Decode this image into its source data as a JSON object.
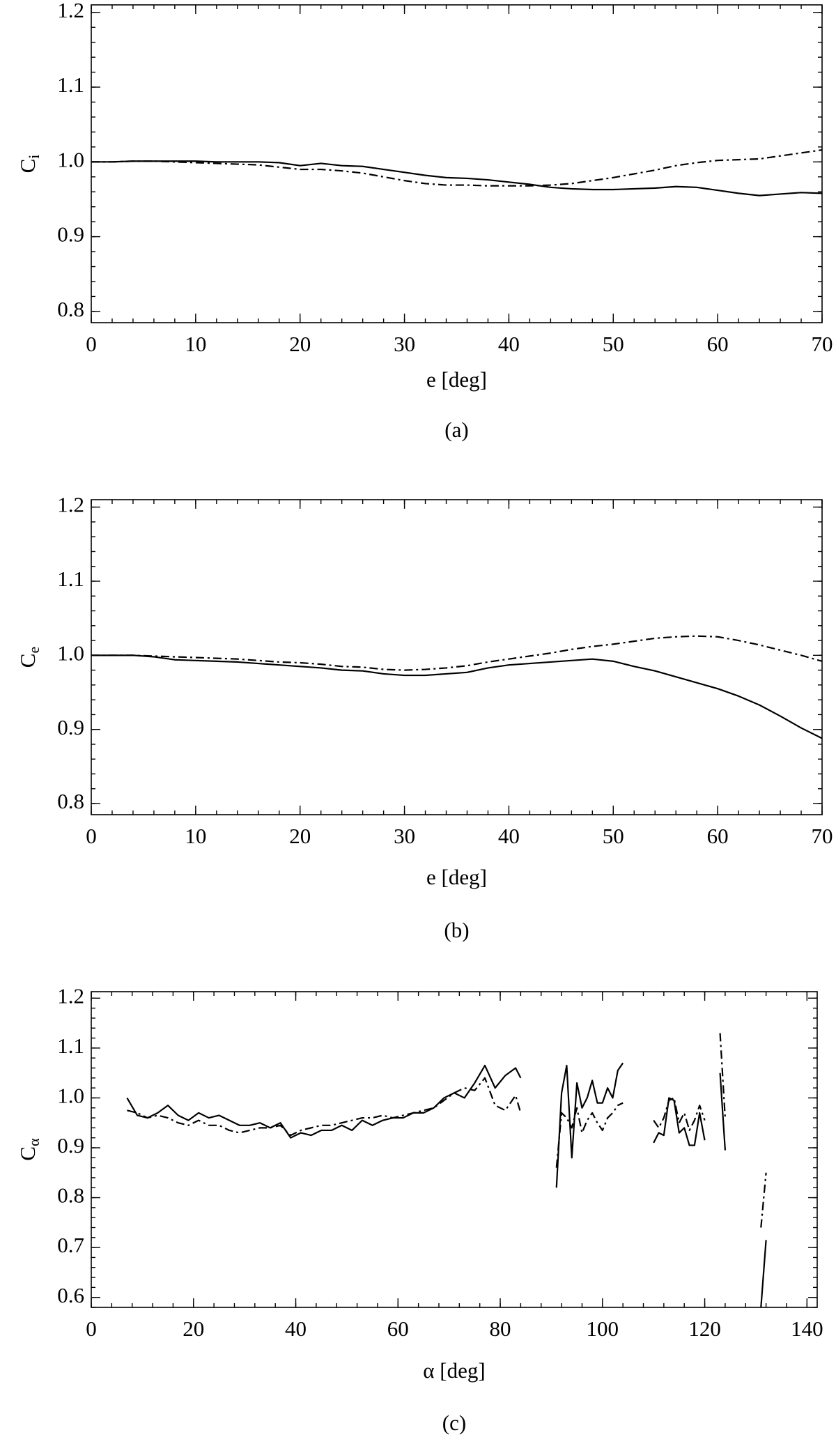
{
  "chart_data": [
    {
      "type": "line",
      "ylabel": "C",
      "ylabel_subscript": "i",
      "xlabel": "e [deg]",
      "caption": "(a)",
      "xlim": [
        0,
        70
      ],
      "xticks": [
        0,
        10,
        20,
        30,
        40,
        50,
        60,
        70
      ],
      "ylim": [
        0.785,
        1.21
      ],
      "yticks": [
        0.8,
        0.9,
        {
          "value": 1.0,
          "label": "1.0"
        },
        1.1,
        1.2
      ],
      "x": [
        0,
        2,
        4,
        6,
        8,
        10,
        12,
        14,
        16,
        18,
        20,
        22,
        24,
        26,
        28,
        30,
        32,
        34,
        36,
        38,
        40,
        42,
        44,
        46,
        48,
        50,
        52,
        54,
        56,
        58,
        60,
        62,
        64,
        66,
        68,
        70
      ],
      "series": [
        {
          "color": "#000000",
          "linestyle": "solid",
          "values": [
            1.0,
            1.0,
            1.001,
            1.001,
            1.001,
            1.001,
            1.0,
            1.0,
            1.0,
            0.999,
            0.995,
            0.998,
            0.995,
            0.994,
            0.99,
            0.986,
            0.982,
            0.979,
            0.978,
            0.976,
            0.973,
            0.97,
            0.966,
            0.964,
            0.963,
            0.963,
            0.964,
            0.965,
            0.967,
            0.966,
            0.962,
            0.958,
            0.955,
            0.957,
            0.959,
            0.958
          ]
        },
        {
          "color": "#000000",
          "linestyle": "dashdot",
          "values": [
            1.0,
            1.0,
            1.001,
            1.001,
            1.0,
            0.999,
            0.998,
            0.997,
            0.996,
            0.993,
            0.99,
            0.99,
            0.988,
            0.985,
            0.98,
            0.975,
            0.971,
            0.969,
            0.969,
            0.968,
            0.968,
            0.968,
            0.969,
            0.971,
            0.975,
            0.979,
            0.984,
            0.989,
            0.995,
            0.999,
            1.002,
            1.003,
            1.004,
            1.008,
            1.012,
            1.016
          ]
        }
      ]
    },
    {
      "type": "line",
      "ylabel": "C",
      "ylabel_subscript": "e",
      "xlabel": "e [deg]",
      "caption": "(b)",
      "xlim": [
        0,
        70
      ],
      "xticks": [
        0,
        10,
        20,
        30,
        40,
        50,
        60,
        70
      ],
      "ylim": [
        0.785,
        1.21
      ],
      "yticks": [
        0.8,
        0.9,
        {
          "value": 1.0,
          "label": "1.0"
        },
        1.1,
        1.2
      ],
      "x": [
        0,
        2,
        4,
        6,
        8,
        10,
        12,
        14,
        16,
        18,
        20,
        22,
        24,
        26,
        28,
        30,
        32,
        34,
        36,
        38,
        40,
        42,
        44,
        46,
        48,
        50,
        52,
        54,
        56,
        58,
        60,
        62,
        64,
        66,
        68,
        70
      ],
      "series": [
        {
          "color": "#000000",
          "linestyle": "solid",
          "values": [
            1.0,
            1.0,
            1.0,
            0.998,
            0.994,
            0.993,
            0.992,
            0.991,
            0.989,
            0.987,
            0.985,
            0.983,
            0.98,
            0.979,
            0.975,
            0.973,
            0.973,
            0.975,
            0.977,
            0.983,
            0.987,
            0.989,
            0.991,
            0.993,
            0.995,
            0.992,
            0.985,
            0.979,
            0.971,
            0.963,
            0.955,
            0.945,
            0.933,
            0.918,
            0.902,
            0.888
          ]
        },
        {
          "color": "#000000",
          "linestyle": "dashdot",
          "values": [
            1.0,
            1.0,
            1.0,
            0.999,
            0.998,
            0.997,
            0.996,
            0.995,
            0.993,
            0.991,
            0.99,
            0.988,
            0.985,
            0.984,
            0.981,
            0.98,
            0.981,
            0.983,
            0.986,
            0.991,
            0.995,
            0.999,
            1.003,
            1.008,
            1.012,
            1.015,
            1.019,
            1.023,
            1.025,
            1.026,
            1.025,
            1.02,
            1.014,
            1.007,
            1.0,
            0.992
          ]
        }
      ]
    },
    {
      "type": "line",
      "ylabel": "C",
      "ylabel_subscript": "α",
      "xlabel": "α [deg]",
      "caption": "(c)",
      "xlim": [
        0,
        142
      ],
      "xticks": [
        0,
        20,
        40,
        60,
        80,
        100,
        120,
        140
      ],
      "ylim": [
        0.58,
        1.213
      ],
      "yticks": [
        0.6,
        0.7,
        0.8,
        0.9,
        {
          "value": 1.0,
          "label": "1.0"
        },
        1.1,
        1.2
      ],
      "x": [
        7,
        9,
        11,
        13,
        15,
        17,
        19,
        21,
        23,
        25,
        27,
        29,
        31,
        33,
        35,
        37,
        39,
        41,
        43,
        45,
        47,
        49,
        51,
        53,
        55,
        57,
        59,
        61,
        63,
        65,
        67,
        69,
        71,
        73,
        75,
        77,
        79,
        81,
        83,
        84,
        87,
        91,
        92,
        93,
        94,
        95,
        96,
        97,
        98,
        99,
        100,
        101,
        102,
        103,
        104,
        107,
        110,
        111,
        112,
        113,
        114,
        115,
        116,
        117,
        118,
        119,
        120,
        121.5,
        123,
        124,
        127,
        131,
        132
      ],
      "series": [
        {
          "color": "#000000",
          "linestyle": "solid",
          "values": [
            1.0,
            0.965,
            0.96,
            0.97,
            0.985,
            0.965,
            0.955,
            0.97,
            0.96,
            0.965,
            0.955,
            0.945,
            0.945,
            0.95,
            0.94,
            0.95,
            0.92,
            0.93,
            0.925,
            0.935,
            0.935,
            0.945,
            0.935,
            0.955,
            0.945,
            0.955,
            0.96,
            0.96,
            0.97,
            0.97,
            0.98,
            1.0,
            1.01,
            1.0,
            1.03,
            1.065,
            1.02,
            1.045,
            1.06,
            1.04,
            null,
            0.82,
            1.01,
            1.065,
            0.88,
            1.03,
            0.98,
            1.0,
            1.035,
            0.99,
            0.99,
            1.02,
            1.0,
            1.055,
            1.07,
            null,
            0.91,
            0.93,
            0.925,
            1.0,
            0.995,
            0.93,
            0.94,
            0.905,
            0.905,
            0.97,
            0.915,
            null,
            1.05,
            0.895,
            null,
            0.58,
            0.715
          ]
        },
        {
          "color": "#000000",
          "linestyle": "dashdot",
          "values": [
            0.975,
            0.97,
            0.96,
            0.965,
            0.96,
            0.95,
            0.945,
            0.955,
            0.945,
            0.945,
            0.935,
            0.93,
            0.935,
            0.94,
            0.94,
            0.945,
            0.925,
            0.935,
            0.94,
            0.945,
            0.945,
            0.95,
            0.955,
            0.96,
            0.96,
            0.965,
            0.96,
            0.965,
            0.97,
            0.975,
            0.98,
            0.995,
            1.01,
            1.02,
            1.015,
            1.04,
            0.985,
            0.975,
            1.005,
            0.97,
            null,
            0.86,
            0.97,
            0.96,
            0.94,
            0.98,
            0.93,
            0.955,
            0.97,
            0.95,
            0.935,
            0.96,
            0.97,
            0.985,
            0.99,
            null,
            0.955,
            0.94,
            0.96,
            0.995,
            1.0,
            0.95,
            0.97,
            0.935,
            0.955,
            0.985,
            0.955,
            null,
            1.13,
            0.96,
            null,
            0.74,
            0.85
          ]
        }
      ]
    }
  ]
}
